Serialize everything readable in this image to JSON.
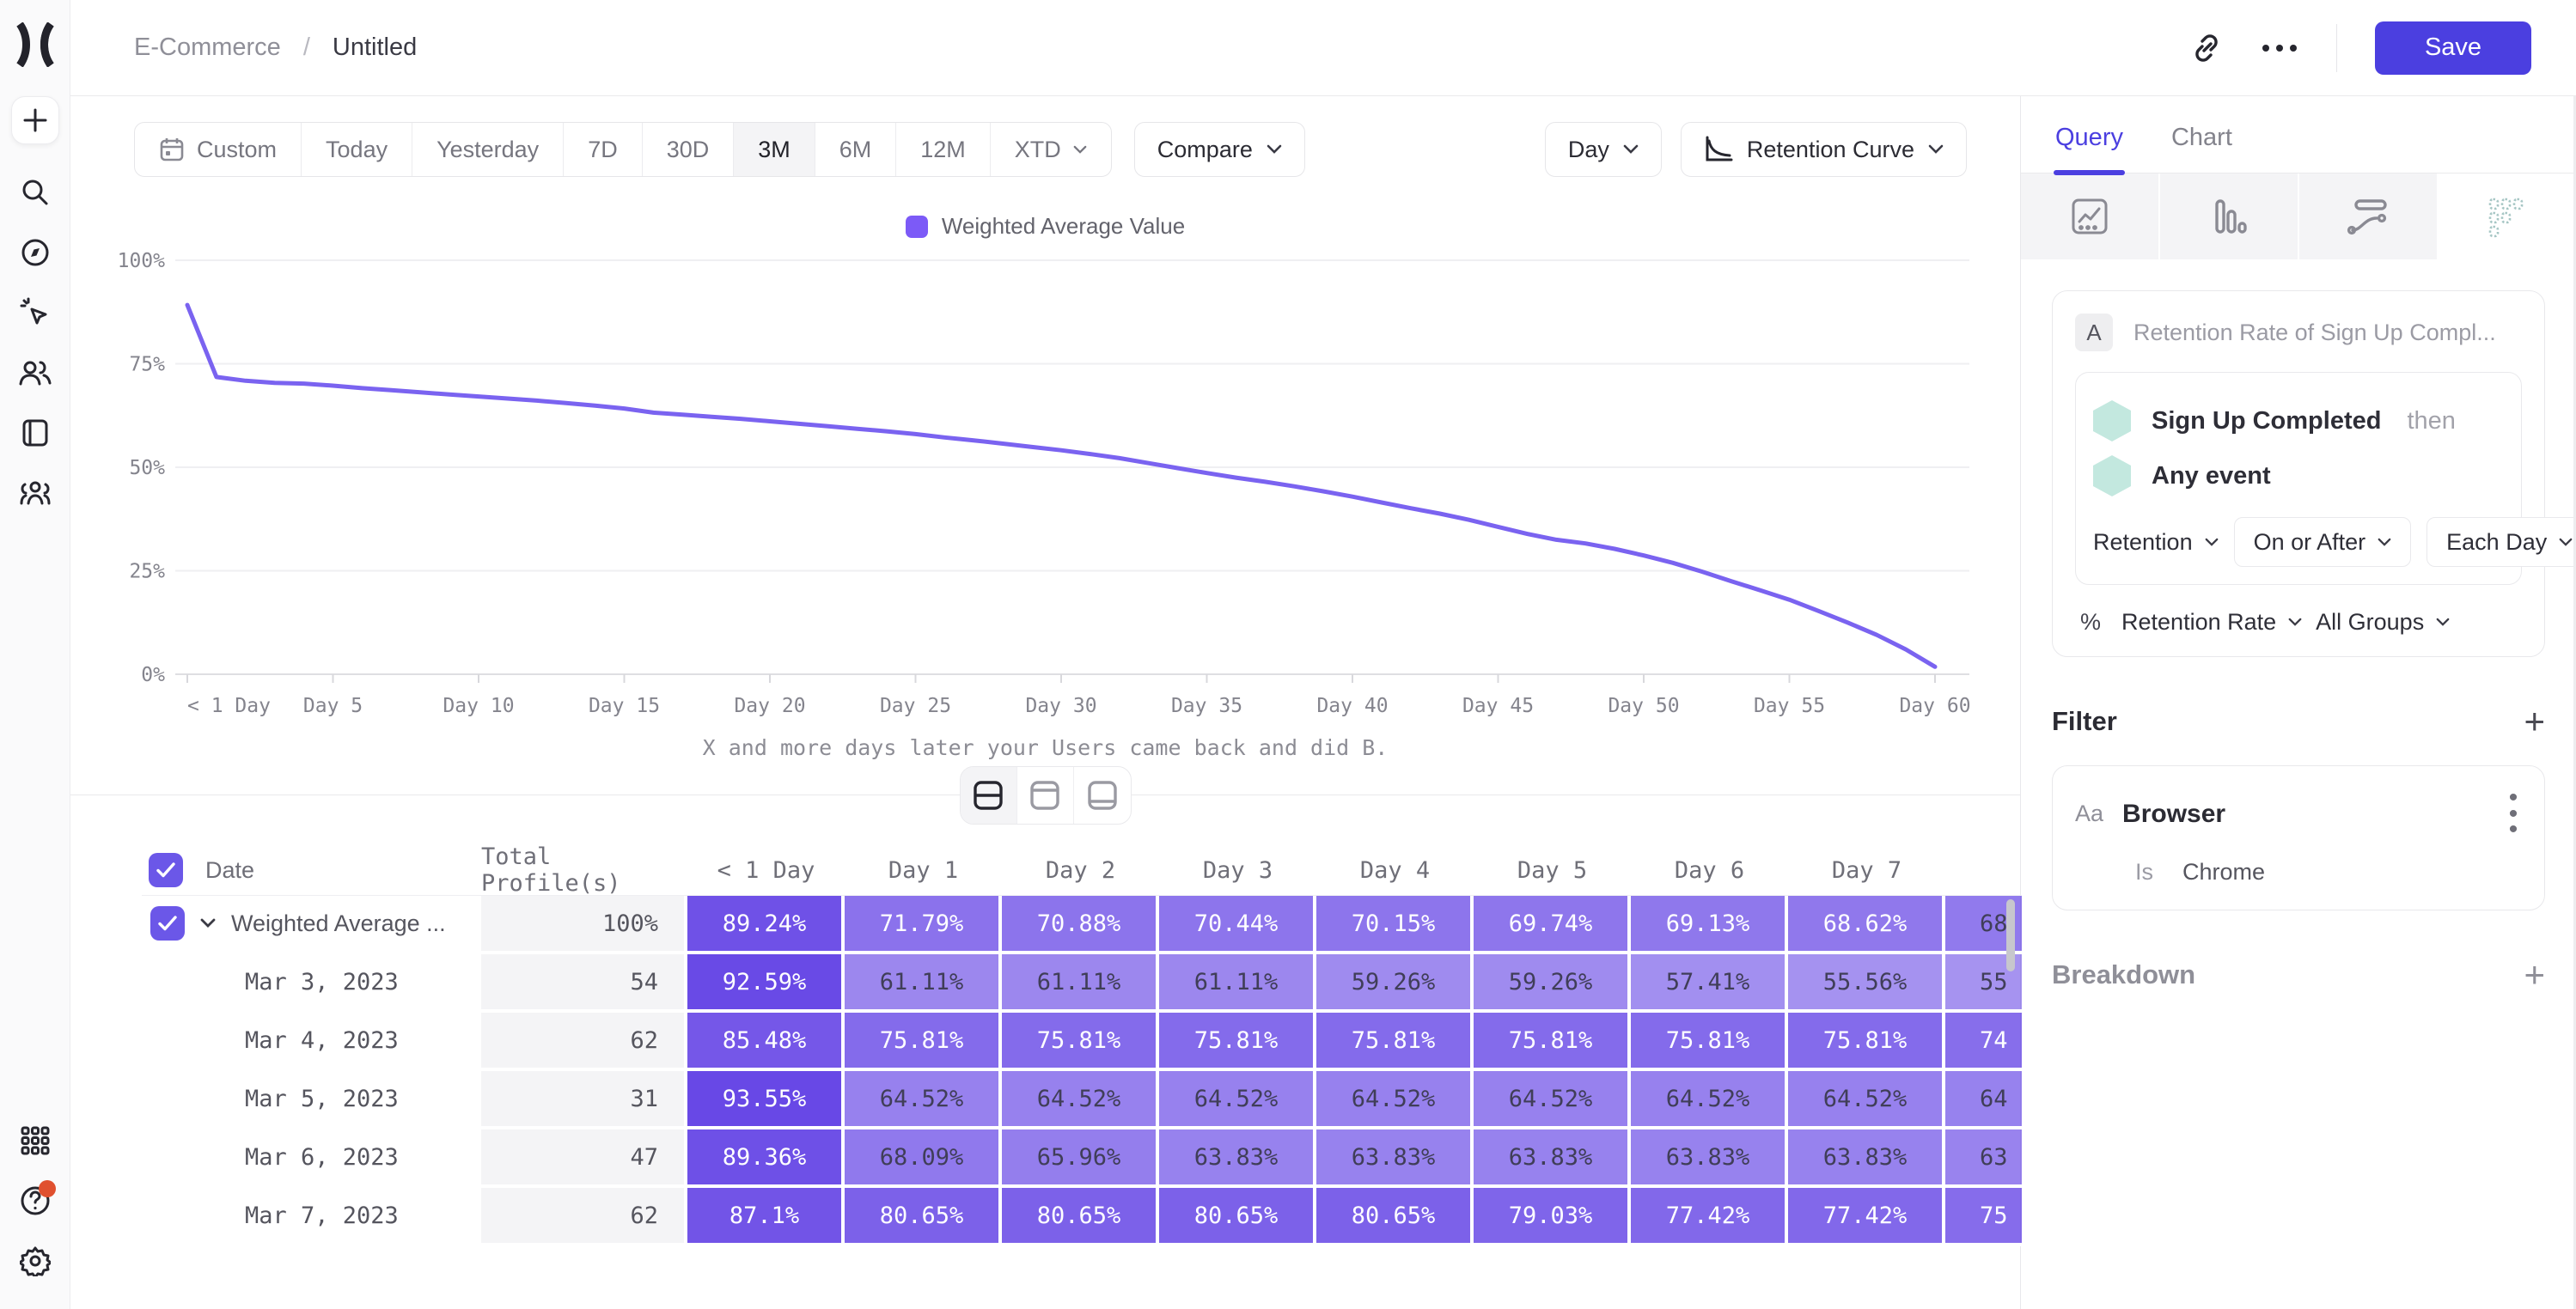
{
  "breadcrumb": {
    "parent": "E-Commerce",
    "separator": "/",
    "current": "Untitled"
  },
  "topbar": {
    "save_label": "Save"
  },
  "toolbar": {
    "ranges": [
      {
        "label": "Custom",
        "icon": "calendar",
        "active": false
      },
      {
        "label": "Today",
        "active": false
      },
      {
        "label": "Yesterday",
        "active": false
      },
      {
        "label": "7D",
        "active": false
      },
      {
        "label": "30D",
        "active": false
      },
      {
        "label": "3M",
        "active": true
      },
      {
        "label": "6M",
        "active": false
      },
      {
        "label": "12M",
        "active": false
      },
      {
        "label": "XTD",
        "chevron": true,
        "active": false
      }
    ],
    "compare_label": "Compare",
    "granularity_label": "Day",
    "chart_type_label": "Retention Curve"
  },
  "chart_data": {
    "type": "line",
    "legend": [
      "Weighted Average Value"
    ],
    "series": [
      {
        "name": "Weighted Average Value",
        "color": "#7A63F0",
        "points": [
          [
            0,
            89.2
          ],
          [
            1,
            71.8
          ],
          [
            2,
            70.9
          ],
          [
            3,
            70.4
          ],
          [
            4,
            70.2
          ],
          [
            5,
            69.7
          ],
          [
            6,
            69.1
          ],
          [
            7,
            68.6
          ],
          [
            8,
            68.1
          ],
          [
            9,
            67.6
          ],
          [
            10,
            67.1
          ],
          [
            11,
            66.6
          ],
          [
            12,
            66.1
          ],
          [
            13,
            65.5
          ],
          [
            14,
            64.9
          ],
          [
            15,
            64.2
          ],
          [
            16,
            63.2
          ],
          [
            17,
            62.7
          ],
          [
            18,
            62.2
          ],
          [
            19,
            61.7
          ],
          [
            20,
            61.1
          ],
          [
            21,
            60.5
          ],
          [
            22,
            59.9
          ],
          [
            23,
            59.3
          ],
          [
            24,
            58.7
          ],
          [
            25,
            58.0
          ],
          [
            26,
            57.2
          ],
          [
            27,
            56.5
          ],
          [
            28,
            55.7
          ],
          [
            29,
            54.9
          ],
          [
            30,
            54.1
          ],
          [
            31,
            53.2
          ],
          [
            32,
            52.2
          ],
          [
            33,
            51.0
          ],
          [
            34,
            49.8
          ],
          [
            35,
            48.6
          ],
          [
            36,
            47.5
          ],
          [
            37,
            46.5
          ],
          [
            38,
            45.4
          ],
          [
            39,
            44.2
          ],
          [
            40,
            42.9
          ],
          [
            41,
            41.5
          ],
          [
            42,
            40.1
          ],
          [
            43,
            38.8
          ],
          [
            44,
            37.3
          ],
          [
            45,
            35.6
          ],
          [
            46,
            33.9
          ],
          [
            47,
            32.5
          ],
          [
            48,
            31.6
          ],
          [
            49,
            30.3
          ],
          [
            50,
            28.7
          ],
          [
            51,
            26.9
          ],
          [
            52,
            24.8
          ],
          [
            53,
            22.5
          ],
          [
            54,
            20.3
          ],
          [
            55,
            18.0
          ],
          [
            56,
            15.3
          ],
          [
            57,
            12.5
          ],
          [
            58,
            9.5
          ],
          [
            59,
            6.0
          ],
          [
            60,
            1.8
          ]
        ]
      }
    ],
    "xlabel": "X and more days later your Users came back and did B.",
    "ylim": [
      0,
      100
    ],
    "xlim": [
      0,
      60
    ],
    "yticks": [
      "100%",
      "75%",
      "50%",
      "25%",
      "0%"
    ],
    "ytick_values": [
      100,
      75,
      50,
      25,
      0
    ],
    "xticks": [
      "< 1 Day",
      "Day 5",
      "Day 10",
      "Day 15",
      "Day 20",
      "Day 25",
      "Day 30",
      "Day 35",
      "Day 40",
      "Day 45",
      "Day 50",
      "Day 55",
      "Day 60"
    ],
    "xtick_values": [
      0,
      5,
      10,
      15,
      20,
      25,
      30,
      35,
      40,
      45,
      50,
      55,
      60
    ],
    "grid": "horizontal",
    "legend_position": "top-center"
  },
  "view_toggle": {
    "options": [
      "split-view",
      "chart-view",
      "table-view"
    ],
    "selected": 0
  },
  "table": {
    "columns": [
      "Date",
      "Total Profile(s)",
      "< 1 Day",
      "Day 1",
      "Day 2",
      "Day 3",
      "Day 4",
      "Day 5",
      "Day 6",
      "Day 7"
    ],
    "value_suffix": "%",
    "cell_base_rgb": [
      93,
      59,
      228
    ],
    "rows": [
      {
        "label": "Weighted Average ...",
        "checked": true,
        "expandable": true,
        "total": "100%",
        "values": [
          89.24,
          71.79,
          70.88,
          70.44,
          70.15,
          69.74,
          69.13,
          68.62
        ],
        "cut": "68"
      },
      {
        "label": "Mar 3, 2023",
        "total": "54",
        "values": [
          92.59,
          61.11,
          61.11,
          61.11,
          59.26,
          59.26,
          57.41,
          55.56
        ],
        "cut": "55"
      },
      {
        "label": "Mar 4, 2023",
        "total": "62",
        "values": [
          85.48,
          75.81,
          75.81,
          75.81,
          75.81,
          75.81,
          75.81,
          75.81
        ],
        "cut": "74"
      },
      {
        "label": "Mar 5, 2023",
        "total": "31",
        "values": [
          93.55,
          64.52,
          64.52,
          64.52,
          64.52,
          64.52,
          64.52,
          64.52
        ],
        "cut": "64"
      },
      {
        "label": "Mar 6, 2023",
        "total": "47",
        "values": [
          89.36,
          68.09,
          65.96,
          63.83,
          63.83,
          63.83,
          63.83,
          63.83
        ],
        "cut": "63"
      },
      {
        "label": "Mar 7, 2023",
        "total": "62",
        "values": [
          87.1,
          80.65,
          80.65,
          80.65,
          80.65,
          79.03,
          77.42,
          77.42
        ],
        "cut": "75"
      }
    ]
  },
  "panel": {
    "tabs": [
      {
        "label": "Query",
        "active": true
      },
      {
        "label": "Chart",
        "active": false
      }
    ],
    "icon_tabs": [
      "line-chart",
      "bar-chart",
      "flow",
      "retention-grid"
    ],
    "icon_tabs_selected": 3,
    "query": {
      "series_badge": "A",
      "series_title": "Retention Rate of Sign Up Compl...",
      "event1_name": "Sign Up Completed",
      "event1_suffix": "then",
      "event2_name": "Any event",
      "retention_dropdown": "Retention",
      "criteria_dropdown": "On or After",
      "granularity_dropdown": "Each Day",
      "measure_icon": "%",
      "measure_dropdown": "Retention Rate",
      "groups_dropdown": "All Groups"
    },
    "filter": {
      "title": "Filter",
      "item_type_icon": "Aa",
      "item_name": "Browser",
      "operator": "Is",
      "value": "Chrome"
    },
    "breakdown": {
      "title": "Breakdown"
    }
  },
  "colors": {
    "accent": "#4B3FE0",
    "line": "#7A63F0",
    "legend_swatch": "#7C5AF7",
    "cell_base": "#5D3BE4",
    "notification_dot": "#E0502F",
    "hexagon": "#C3E8DF"
  }
}
